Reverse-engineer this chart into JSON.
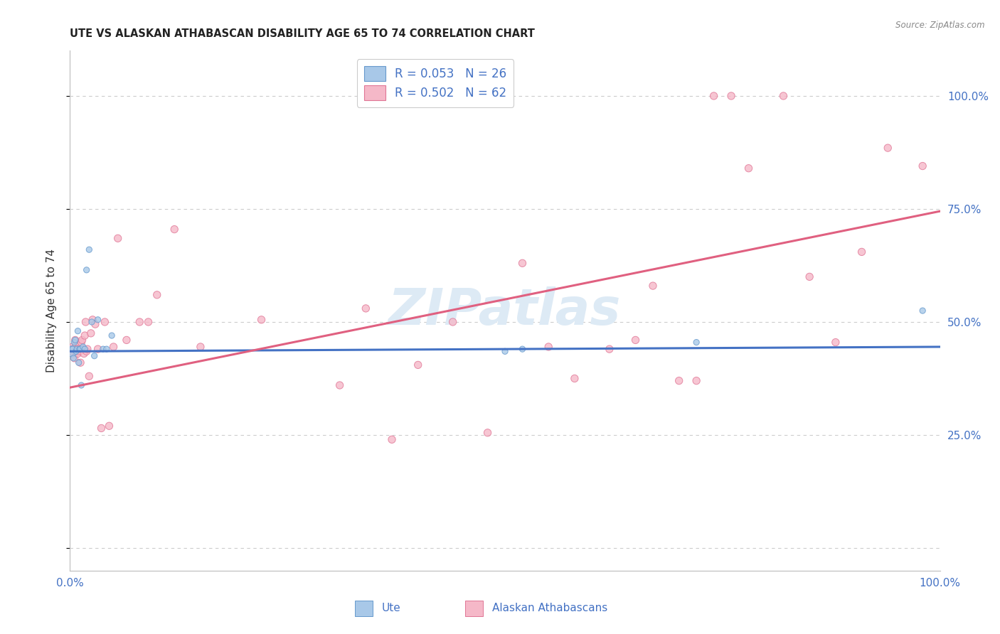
{
  "title": "UTE VS ALASKAN ATHABASCAN DISABILITY AGE 65 TO 74 CORRELATION CHART",
  "source": "Source: ZipAtlas.com",
  "ylabel": "Disability Age 65 to 74",
  "xlim": [
    0,
    1
  ],
  "ylim": [
    -0.05,
    1.1
  ],
  "ytick_positions": [
    0.0,
    0.25,
    0.5,
    0.75,
    1.0
  ],
  "ytick_labels": [
    "",
    "25.0%",
    "50.0%",
    "75.0%",
    "100.0%"
  ],
  "xtick_positions": [
    0.0,
    1.0
  ],
  "xtick_labels": [
    "0.0%",
    "100.0%"
  ],
  "legend_labels": [
    "R = 0.053   N = 26",
    "R = 0.502   N = 62"
  ],
  "ute_face_color": "#a8c8e8",
  "ute_edge_color": "#6699cc",
  "ath_face_color": "#f5b8c8",
  "ath_edge_color": "#e07595",
  "ute_line_color": "#4472c4",
  "ath_line_color": "#e06080",
  "watermark_text": "ZIPatlas",
  "watermark_color": "#ddeaf5",
  "bg_color": "#ffffff",
  "grid_color": "#cccccc",
  "title_color": "#222222",
  "source_color": "#888888",
  "axis_label_color": "#333333",
  "tick_color": "#4472c4",
  "ute_reg": [
    0.0,
    0.435,
    1.0,
    0.445
  ],
  "ath_reg": [
    0.0,
    0.355,
    1.0,
    0.745
  ],
  "ute_x": [
    0.002,
    0.003,
    0.004,
    0.005,
    0.006,
    0.007,
    0.008,
    0.009,
    0.01,
    0.011,
    0.012,
    0.013,
    0.015,
    0.017,
    0.019,
    0.022,
    0.025,
    0.028,
    0.032,
    0.038,
    0.042,
    0.048,
    0.5,
    0.52,
    0.72,
    0.98
  ],
  "ute_y": [
    0.435,
    0.44,
    0.42,
    0.455,
    0.46,
    0.435,
    0.44,
    0.48,
    0.41,
    0.44,
    0.44,
    0.36,
    0.445,
    0.44,
    0.615,
    0.66,
    0.5,
    0.425,
    0.505,
    0.44,
    0.44,
    0.47,
    0.435,
    0.44,
    0.455,
    0.525
  ],
  "ute_sizes": [
    120,
    35,
    35,
    35,
    35,
    35,
    35,
    35,
    35,
    35,
    35,
    35,
    35,
    35,
    35,
    35,
    35,
    35,
    35,
    35,
    35,
    35,
    35,
    35,
    35,
    35
  ],
  "ath_x": [
    0.001,
    0.002,
    0.003,
    0.004,
    0.005,
    0.005,
    0.006,
    0.006,
    0.007,
    0.008,
    0.009,
    0.01,
    0.011,
    0.012,
    0.013,
    0.014,
    0.015,
    0.016,
    0.017,
    0.018,
    0.019,
    0.02,
    0.022,
    0.024,
    0.026,
    0.029,
    0.032,
    0.036,
    0.04,
    0.045,
    0.05,
    0.055,
    0.065,
    0.08,
    0.09,
    0.1,
    0.12,
    0.15,
    0.22,
    0.31,
    0.34,
    0.37,
    0.4,
    0.44,
    0.48,
    0.52,
    0.55,
    0.58,
    0.62,
    0.65,
    0.67,
    0.7,
    0.72,
    0.74,
    0.76,
    0.78,
    0.82,
    0.85,
    0.88,
    0.91,
    0.94,
    0.98
  ],
  "ath_y": [
    0.44,
    0.435,
    0.445,
    0.43,
    0.44,
    0.42,
    0.435,
    0.46,
    0.45,
    0.44,
    0.43,
    0.44,
    0.435,
    0.41,
    0.455,
    0.46,
    0.44,
    0.43,
    0.47,
    0.5,
    0.435,
    0.44,
    0.38,
    0.475,
    0.505,
    0.495,
    0.44,
    0.265,
    0.5,
    0.27,
    0.445,
    0.685,
    0.46,
    0.5,
    0.5,
    0.56,
    0.705,
    0.445,
    0.505,
    0.36,
    0.53,
    0.24,
    0.405,
    0.5,
    0.255,
    0.63,
    0.445,
    0.375,
    0.44,
    0.46,
    0.58,
    0.37,
    0.37,
    1.0,
    1.0,
    0.84,
    1.0,
    0.6,
    0.455,
    0.655,
    0.885,
    0.845
  ],
  "ath_sizes": [
    45,
    45,
    55,
    45,
    55,
    55,
    55,
    55,
    55,
    55,
    55,
    55,
    55,
    55,
    55,
    55,
    55,
    55,
    55,
    55,
    55,
    55,
    55,
    55,
    55,
    55,
    55,
    55,
    55,
    55,
    55,
    55,
    55,
    55,
    55,
    55,
    55,
    55,
    55,
    55,
    55,
    55,
    55,
    55,
    55,
    55,
    55,
    55,
    55,
    55,
    55,
    55,
    55,
    55,
    55,
    55,
    55,
    55,
    55,
    55,
    55,
    55
  ]
}
